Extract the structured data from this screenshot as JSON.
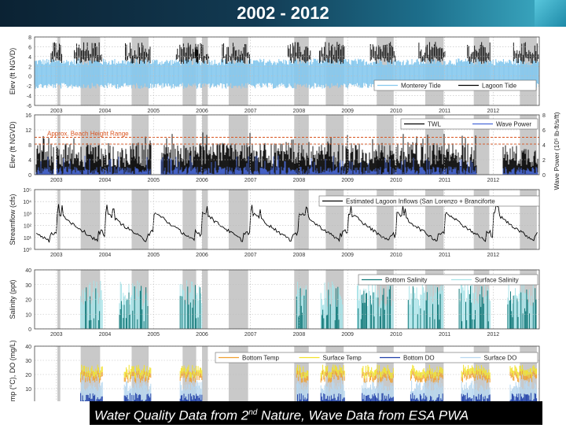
{
  "title": "2002 - 2012",
  "caption": {
    "pre": "Water Quality Data from 2",
    "sup": "nd",
    "post": " Nature, Wave Data from ESA PWA"
  },
  "colors": {
    "monterey_tide": "#86c8ee",
    "lagoon_tide": "#000000",
    "twl": "#000000",
    "wave_power": "#4a6ad8",
    "beach_line": "#d9531e",
    "inflow": "#000000",
    "bottom_salinity": "#127a7a",
    "surface_salinity": "#a8e3e8",
    "bottom_temp": "#f0a030",
    "surface_temp": "#f2e22a",
    "bottom_do": "#1f3fa8",
    "surface_do": "#b8d8f0",
    "closure_shading": "#c9c9c9"
  },
  "chart_data": [
    {
      "type": "line",
      "ylabel": "Elev (ft NGVD)",
      "ylim": [
        -6,
        8
      ],
      "yticks": [
        "8",
        "6",
        "4",
        "2",
        "0",
        "-2",
        "-4",
        "-6"
      ],
      "xticks": [
        "2003",
        "2004",
        "2005",
        "2006",
        "2007",
        "2008",
        "2009",
        "2010",
        "2011",
        "2012"
      ],
      "legend": "bottom-right",
      "series": [
        {
          "name": "Monterey Tide",
          "values": [
            2.8,
            -1.0
          ]
        },
        {
          "name": "Lagoon Tide",
          "values": [
            6.8,
            4.0
          ]
        }
      ]
    },
    {
      "type": "line",
      "ylabel": "Elev (ft NGVD)",
      "y2label": "Wave Power (10⁵ lb-ft/s/ft)",
      "ylim": [
        0,
        16
      ],
      "y2lim": [
        0,
        8
      ],
      "yticks": [
        "16",
        "12",
        "8",
        "4",
        "0"
      ],
      "y2ticks": [
        "8",
        "6",
        "4",
        "2",
        "0"
      ],
      "xticks": [
        "2003",
        "2004",
        "2005",
        "2006",
        "2007",
        "2008",
        "2009",
        "2010",
        "2011",
        "2012"
      ],
      "legend": "top-right",
      "annotation": "Approx. Beach Height Range",
      "beach_range": [
        8.2,
        10.0
      ],
      "series": [
        {
          "name": "TWL",
          "values": [
            8.0,
            3.0
          ]
        },
        {
          "name": "Wave Power",
          "values": [
            1.0,
            4.0
          ]
        }
      ]
    },
    {
      "type": "line",
      "ylabel": "Streamflow (cfs)",
      "yscale": "log",
      "ylim": [
        1,
        100000
      ],
      "yticks": [
        "10⁵",
        "10⁴",
        "10³",
        "10²",
        "10¹",
        "10⁰"
      ],
      "xticks": [
        "2003",
        "2004",
        "2005",
        "2006",
        "2007",
        "2008",
        "2009",
        "2010",
        "2011",
        "2012"
      ],
      "legend": "top-right",
      "series": [
        {
          "name": "Estimated Lagoon Inflows (San Lorenzo + Branciforte",
          "values": [
            3000,
            2
          ]
        }
      ]
    },
    {
      "type": "line",
      "ylabel": "Salinity (ppt)",
      "ylim": [
        0,
        40
      ],
      "yticks": [
        "40",
        "30",
        "20",
        "10",
        "0"
      ],
      "xticks": [
        "2003",
        "2004",
        "2005",
        "2006",
        "2007",
        "2008",
        "2009",
        "2010",
        "2011",
        "2012"
      ],
      "legend": "top-right",
      "series": [
        {
          "name": "Bottom Salinity",
          "values": [
            33,
            2
          ]
        },
        {
          "name": "Surface Salinity",
          "values": [
            32,
            1
          ]
        }
      ]
    },
    {
      "type": "line",
      "ylabel": "Temp (°C), DO (mg/L)",
      "ylim": [
        0,
        40
      ],
      "yticks": [
        "40",
        "30",
        "20",
        "10",
        "0"
      ],
      "xticks": [
        "2003"
      ],
      "legend": "top",
      "series": [
        {
          "name": "Bottom Temp",
          "values": [
            20,
            14
          ]
        },
        {
          "name": "Surface Temp",
          "values": [
            25,
            16
          ]
        },
        {
          "name": "Bottom DO",
          "values": [
            8,
            2
          ]
        },
        {
          "name": "Surface DO",
          "values": [
            12,
            6
          ]
        }
      ]
    }
  ]
}
